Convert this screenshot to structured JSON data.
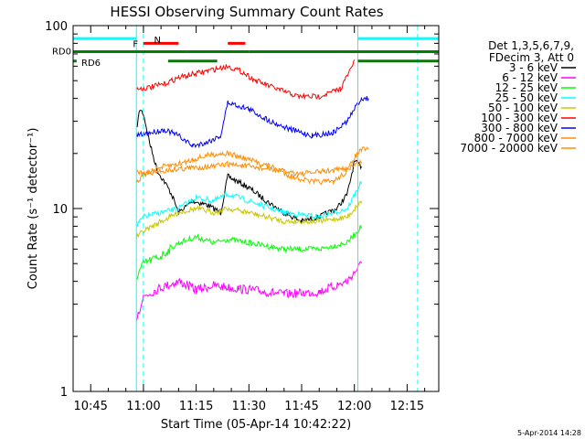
{
  "chart_data": {
    "type": "line",
    "title": "HESSI Observing Summary Count Rates",
    "xlabel": "Start Time (05-Apr-14 10:42:22)",
    "ylabel": "Count Rate (s⁻¹ detector⁻¹)",
    "y_scale": "log",
    "ylim": [
      1,
      100
    ],
    "xlim": [
      "10:40",
      "12:24"
    ],
    "x_ticks": [
      "10:45",
      "11:00",
      "11:15",
      "11:30",
      "11:45",
      "12:00",
      "12:15"
    ],
    "y_ticks": [
      "1",
      "10",
      "100"
    ],
    "grid": false,
    "legend_position": "right",
    "legend_header": [
      "Det 1,3,5,6,7,9,",
      "FDecim 3, Att 0"
    ],
    "series": [
      {
        "name": "3 - 6 keV",
        "color": "#000000",
        "x": [
          "10:58",
          "10:59",
          "11:00",
          "11:02",
          "11:04",
          "11:06",
          "11:08",
          "11:10",
          "11:14",
          "11:18",
          "11:22",
          "11:24",
          "11:30",
          "11:35",
          "11:40",
          "11:45",
          "11:50",
          "11:55",
          "11:58",
          "12:00",
          "12:02"
        ],
        "y": [
          27,
          35,
          33,
          22,
          16,
          14,
          12,
          9.5,
          11,
          10.5,
          9.5,
          15,
          13,
          11,
          9.5,
          8.5,
          9,
          10,
          12,
          18,
          17
        ]
      },
      {
        "name": "6 - 12 keV",
        "color": "#ff00ff",
        "x": [
          "10:58",
          "11:00",
          "11:05",
          "11:10",
          "11:15",
          "11:20",
          "11:24",
          "11:30",
          "11:40",
          "11:50",
          "11:58",
          "12:02"
        ],
        "y": [
          2.5,
          3.3,
          3.7,
          4,
          3.6,
          3.8,
          3.7,
          3.6,
          3.4,
          3.5,
          4,
          5
        ]
      },
      {
        "name": "12 - 25 keV",
        "color": "#00ff00",
        "x": [
          "10:58",
          "11:00",
          "11:05",
          "11:10",
          "11:15",
          "11:20",
          "11:24",
          "11:30",
          "11:40",
          "11:50",
          "11:58",
          "12:02"
        ],
        "y": [
          4.2,
          5,
          5.5,
          6.5,
          7,
          6.5,
          6.8,
          6.5,
          6,
          6,
          6.5,
          8
        ]
      },
      {
        "name": "25 - 50 keV",
        "color": "#00ffff",
        "x": [
          "10:58",
          "11:00",
          "11:05",
          "11:10",
          "11:15",
          "11:20",
          "11:24",
          "11:30",
          "11:40",
          "11:50",
          "11:58",
          "12:02"
        ],
        "y": [
          8,
          9,
          9.5,
          10,
          11.5,
          11,
          12,
          11,
          9.5,
          9,
          10,
          14
        ]
      },
      {
        "name": "50 - 100 keV",
        "color": "#c8c800",
        "x": [
          "10:58",
          "11:00",
          "11:05",
          "11:10",
          "11:15",
          "11:20",
          "11:24",
          "11:30",
          "11:40",
          "11:50",
          "11:58",
          "12:02"
        ],
        "y": [
          7,
          7.5,
          8.5,
          9.5,
          10,
          9.5,
          10,
          9.5,
          8.5,
          8.5,
          9,
          11
        ]
      },
      {
        "name": "100 - 300 keV",
        "color": "#ff0000",
        "x": [
          "10:58",
          "11:02",
          "11:06",
          "11:10",
          "11:24",
          "11:28",
          "11:32",
          "11:38",
          "11:44",
          "11:50",
          "11:56",
          "11:59",
          "12:00"
        ],
        "y": [
          45,
          46,
          48,
          52,
          60,
          56,
          50,
          45,
          41,
          41,
          45,
          58,
          65
        ]
      },
      {
        "name": "300 - 800 keV",
        "color": "#0000ff",
        "x": [
          "10:58",
          "11:02",
          "11:06",
          "11:10",
          "11:14",
          "11:18",
          "11:22",
          "11:24",
          "11:30",
          "11:36",
          "11:42",
          "11:48",
          "11:54",
          "11:58",
          "12:00",
          "12:02",
          "12:04"
        ],
        "y": [
          25,
          26,
          27,
          25,
          22,
          23,
          25,
          38,
          35,
          30,
          27,
          25,
          26,
          30,
          35,
          40,
          40
        ]
      },
      {
        "name": "800 - 7000 keV",
        "color": "#ff8c00",
        "x": [
          "10:58",
          "11:02",
          "11:06",
          "11:10",
          "11:14",
          "11:18",
          "11:22",
          "11:24",
          "11:30",
          "11:36",
          "11:42",
          "11:48",
          "11:54",
          "11:58",
          "12:00",
          "12:02",
          "12:04"
        ],
        "y": [
          14,
          16,
          17,
          17.5,
          18.5,
          19.5,
          20,
          20,
          18.5,
          17,
          15,
          14,
          14,
          16,
          19,
          21,
          21
        ]
      },
      {
        "name": "7000 - 20000 keV",
        "color": "#ff8c00",
        "x": [
          "10:58",
          "11:00",
          "11:05",
          "11:10",
          "11:20",
          "11:24",
          "11:30",
          "11:45",
          "11:58",
          "12:02"
        ],
        "y": [
          16,
          15.5,
          16,
          16.5,
          17,
          17.5,
          17,
          15.5,
          16.5,
          18
        ]
      }
    ],
    "annotations": {
      "flags": [
        {
          "label": "N",
          "color": "#00ffff",
          "level": 85,
          "segments": [
            [
              "10:40",
              "10:58"
            ],
            [
              "12:01",
              "12:24"
            ]
          ]
        },
        {
          "label": "F",
          "color": "#ff0000",
          "level": 80,
          "segments": [
            [
              "11:00",
              "11:10"
            ],
            [
              "11:24",
              "11:29"
            ]
          ]
        },
        {
          "label": "RD0",
          "color": "#008000",
          "level": 72,
          "segments": [
            [
              "10:40",
              "11:12"
            ],
            [
              "11:12",
              "11:30"
            ],
            [
              "11:30",
              "12:24"
            ]
          ]
        },
        {
          "label": "RD6",
          "color": "#008000",
          "level": 64,
          "segments": [
            [
              "10:40",
              "10:41"
            ],
            [
              "11:07",
              "11:21"
            ],
            [
              "12:01",
              "12:24"
            ]
          ]
        }
      ],
      "vlines": [
        {
          "x": "10:58",
          "color": "#00ffff",
          "style": "solid"
        },
        {
          "x": "11:00",
          "color": "#00ffff",
          "style": "dashed"
        },
        {
          "x": "12:01",
          "color": "#00ffff",
          "style": "solid"
        },
        {
          "x": "12:18",
          "color": "#00ffff",
          "style": "dashed"
        }
      ]
    },
    "footer_date": "5-Apr-2014 14:28"
  }
}
